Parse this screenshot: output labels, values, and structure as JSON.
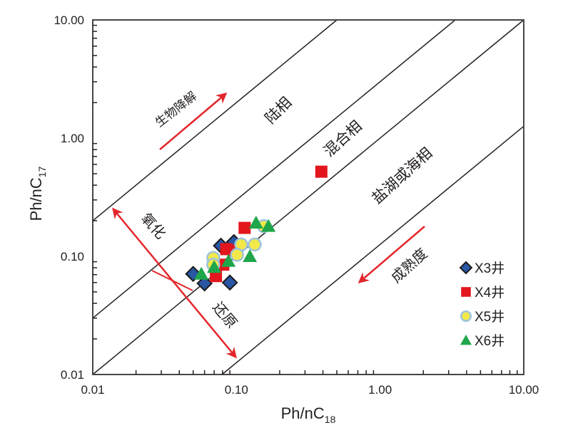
{
  "chart_data": {
    "type": "scatter",
    "title": "",
    "xlabel": "Ph/nC",
    "xlabel_sub": "18",
    "ylabel": "Ph/nC",
    "ylabel_sub": "17",
    "xscale": "log",
    "yscale": "log",
    "xlim": [
      0.01,
      10
    ],
    "ylim": [
      0.01,
      10
    ],
    "xticks": [
      "0.01",
      "0.10",
      "1.00",
      "10.00"
    ],
    "yticks": [
      "0.01",
      "0.10",
      "1.00",
      "10.00"
    ],
    "grid": false,
    "legend_position": "bottom-right",
    "boundary_lines_ratio": [
      20,
      3,
      1,
      0.126
    ],
    "region_labels": [
      "陆相",
      "混合相",
      "盐湖或海相"
    ],
    "arrow_labels": {
      "biodegradation": "生物降解",
      "oxidation": "氧化",
      "reduction": "还原",
      "maturity": "成熟度"
    },
    "colors": {
      "arrow": "#e3262b",
      "line": "#231f20"
    },
    "series": [
      {
        "name": "X3井",
        "marker": "diamond",
        "color": "#2a57a4",
        "edge": "#1a1a1a",
        "x": [
          0.05,
          0.06,
          0.078,
          0.09,
          0.096
        ],
        "y": [
          0.071,
          0.059,
          0.123,
          0.06,
          0.132
        ]
      },
      {
        "name": "X4井",
        "marker": "square",
        "color": "#e3161d",
        "edge": "#e3161d",
        "x": [
          0.39,
          0.114,
          0.085,
          0.072,
          0.081,
          0.096
        ],
        "y": [
          0.52,
          0.174,
          0.115,
          0.068,
          0.085,
          0.112
        ]
      },
      {
        "name": "X5井",
        "marker": "circle",
        "color": "#f2e84a",
        "edge": "#9cc3dd",
        "x": [
          0.069,
          0.108,
          0.101,
          0.134,
          0.155,
          0.069
        ],
        "y": [
          0.097,
          0.126,
          0.103,
          0.126,
          0.18,
          0.085
        ]
      },
      {
        "name": "X6井",
        "marker": "triangle",
        "color": "#1fa64a",
        "edge": "#1fa64a",
        "x": [
          0.057,
          0.07,
          0.088,
          0.124,
          0.137,
          0.167
        ],
        "y": [
          0.071,
          0.081,
          0.091,
          0.1,
          0.192,
          0.18
        ]
      }
    ]
  }
}
